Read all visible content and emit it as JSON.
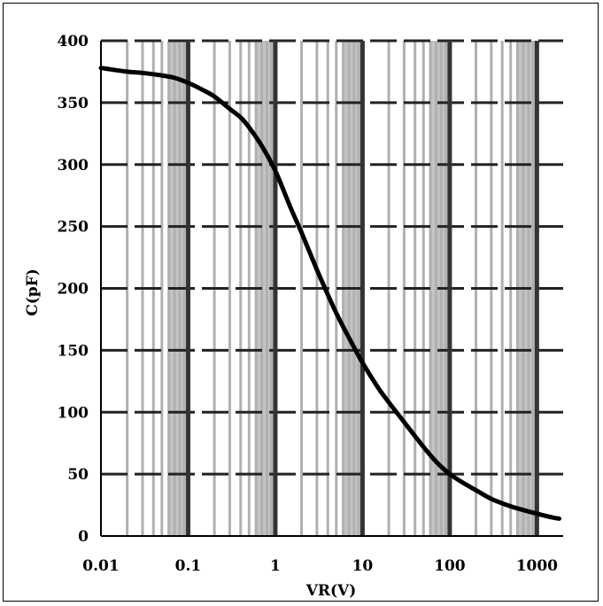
{
  "chart_data": {
    "type": "line",
    "title": "",
    "xlabel": "VR(V)",
    "ylabel": "C(pF)",
    "x_scale": "log",
    "xlim": [
      0.01,
      2000
    ],
    "ylim": [
      0,
      400
    ],
    "x_ticks": [
      {
        "value": 0.01,
        "label": "0.01"
      },
      {
        "value": 0.1,
        "label": "0.1"
      },
      {
        "value": 1,
        "label": "1"
      },
      {
        "value": 10,
        "label": "10"
      },
      {
        "value": 100,
        "label": "100"
      },
      {
        "value": 1000,
        "label": "1000"
      }
    ],
    "y_ticks": [
      {
        "value": 0,
        "label": "0"
      },
      {
        "value": 50,
        "label": "50"
      },
      {
        "value": 100,
        "label": "100"
      },
      {
        "value": 150,
        "label": "150"
      },
      {
        "value": 200,
        "label": "200"
      },
      {
        "value": 250,
        "label": "250"
      },
      {
        "value": 300,
        "label": "300"
      },
      {
        "value": 350,
        "label": "350"
      },
      {
        "value": 400,
        "label": "400"
      }
    ],
    "grid": true,
    "shaded_bands": [
      {
        "from": 0.06,
        "to": 0.1
      },
      {
        "from": 0.6,
        "to": 1
      },
      {
        "from": 6,
        "to": 10
      },
      {
        "from": 60,
        "to": 100
      },
      {
        "from": 600,
        "to": 1000
      }
    ],
    "series": [
      {
        "color": "#000000",
        "x": [
          0.01,
          0.02,
          0.03,
          0.05,
          0.07,
          0.1,
          0.15,
          0.2,
          0.3,
          0.4,
          0.5,
          0.7,
          1,
          1.5,
          2,
          3,
          4,
          5,
          7,
          10,
          15,
          20,
          30,
          50,
          70,
          100,
          150,
          200,
          300,
          500,
          700,
          1000,
          1500,
          1800
        ],
        "y": [
          378,
          375,
          374,
          372,
          370,
          366,
          360,
          355,
          345,
          338,
          330,
          315,
          295,
          265,
          245,
          215,
          195,
          180,
          160,
          140,
          120,
          108,
          92,
          72,
          60,
          50,
          42,
          37,
          30,
          24,
          21,
          18,
          15,
          14
        ]
      }
    ]
  }
}
